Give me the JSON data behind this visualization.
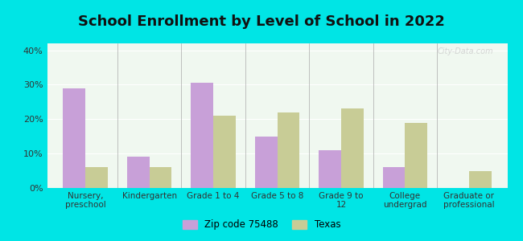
{
  "title": "School Enrollment by Level of School in 2022",
  "categories": [
    "Nursery,\npreschool",
    "Kindergarten",
    "Grade 1 to 4",
    "Grade 5 to 8",
    "Grade 9 to\n12",
    "College\nundergrad",
    "Graduate or\nprofessional"
  ],
  "zip_values": [
    29.0,
    9.0,
    30.5,
    15.0,
    11.0,
    6.0,
    0.0
  ],
  "texas_values": [
    6.0,
    6.0,
    21.0,
    22.0,
    23.0,
    19.0,
    5.0
  ],
  "zip_color": "#c8a0d8",
  "texas_color": "#c8cc96",
  "background_outer": "#00e5e5",
  "background_inner_top": "#f0f8f0",
  "background_inner_bottom": "#e8f5e0",
  "ylim": [
    0,
    42
  ],
  "yticks": [
    0,
    10,
    20,
    30,
    40
  ],
  "ytick_labels": [
    "0%",
    "10%",
    "20%",
    "30%",
    "40%"
  ],
  "legend_zip_label": "Zip code 75488",
  "legend_texas_label": "Texas",
  "bar_width": 0.35,
  "watermark": "City-Data.com"
}
